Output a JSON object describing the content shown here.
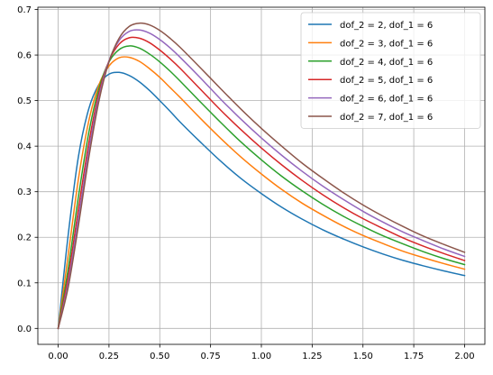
{
  "chart_data": {
    "type": "line",
    "title": "",
    "xlabel": "",
    "ylabel": "",
    "xlim": [
      -0.1,
      2.1
    ],
    "ylim": [
      -0.035,
      0.705
    ],
    "grid": true,
    "legend_placement": "top-right",
    "x_ticks": [
      0.0,
      0.25,
      0.5,
      0.75,
      1.0,
      1.25,
      1.5,
      1.75,
      2.0
    ],
    "x_tick_labels": [
      "0.00",
      "0.25",
      "0.50",
      "0.75",
      "1.00",
      "1.25",
      "1.50",
      "1.75",
      "2.00"
    ],
    "y_ticks": [
      0.0,
      0.1,
      0.2,
      0.3,
      0.4,
      0.5,
      0.6,
      0.7
    ],
    "y_tick_labels": [
      "0.0",
      "0.1",
      "0.2",
      "0.3",
      "0.4",
      "0.5",
      "0.6",
      "0.7"
    ],
    "x": [
      0.0,
      0.05,
      0.1,
      0.15,
      0.2,
      0.25,
      0.3,
      0.35,
      0.4,
      0.45,
      0.5,
      0.55,
      0.6,
      0.7,
      0.8,
      0.9,
      1.0,
      1.1,
      1.2,
      1.3,
      1.4,
      1.5,
      1.6,
      1.7,
      1.8,
      1.9,
      2.0
    ],
    "series": [
      {
        "name": "dof_2 = 2, dof_1 = 6",
        "color": "#1f77b4",
        "values": [
          0.0,
          0.208,
          0.378,
          0.481,
          0.535,
          0.558,
          0.562,
          0.555,
          0.541,
          0.522,
          0.5,
          0.477,
          0.453,
          0.409,
          0.367,
          0.329,
          0.296,
          0.266,
          0.24,
          0.217,
          0.197,
          0.179,
          0.163,
          0.149,
          0.137,
          0.126,
          0.116
        ]
      },
      {
        "name": "dof_2 = 3, dof_1 = 6",
        "color": "#ff7f0e",
        "values": [
          0.0,
          0.163,
          0.329,
          0.454,
          0.534,
          0.576,
          0.594,
          0.595,
          0.586,
          0.57,
          0.551,
          0.529,
          0.507,
          0.461,
          0.417,
          0.376,
          0.339,
          0.305,
          0.275,
          0.249,
          0.225,
          0.204,
          0.186,
          0.169,
          0.155,
          0.142,
          0.13
        ]
      },
      {
        "name": "dof_2 = 4, dof_1 = 6",
        "color": "#2ca02c",
        "values": [
          0.0,
          0.133,
          0.29,
          0.428,
          0.526,
          0.585,
          0.612,
          0.62,
          0.615,
          0.602,
          0.585,
          0.565,
          0.543,
          0.497,
          0.452,
          0.409,
          0.37,
          0.334,
          0.302,
          0.273,
          0.247,
          0.224,
          0.203,
          0.185,
          0.168,
          0.153,
          0.14
        ]
      },
      {
        "name": "dof_2 = 5, dof_1 = 6",
        "color": "#d62728",
        "values": [
          0.0,
          0.115,
          0.263,
          0.405,
          0.516,
          0.587,
          0.624,
          0.638,
          0.637,
          0.627,
          0.611,
          0.592,
          0.571,
          0.525,
          0.479,
          0.436,
          0.396,
          0.359,
          0.325,
          0.294,
          0.266,
          0.241,
          0.219,
          0.198,
          0.18,
          0.164,
          0.149
        ]
      },
      {
        "name": "dof_2 = 6, dof_1 = 6",
        "color": "#9467bd",
        "values": [
          0.0,
          0.102,
          0.243,
          0.388,
          0.507,
          0.587,
          0.632,
          0.652,
          0.655,
          0.648,
          0.634,
          0.616,
          0.595,
          0.55,
          0.503,
          0.459,
          0.418,
          0.38,
          0.345,
          0.313,
          0.284,
          0.257,
          0.233,
          0.211,
          0.192,
          0.174,
          0.158
        ]
      },
      {
        "name": "dof_2 = 7, dof_1 = 6",
        "color": "#8c564b",
        "values": [
          0.0,
          0.092,
          0.227,
          0.373,
          0.498,
          0.585,
          0.637,
          0.663,
          0.67,
          0.666,
          0.654,
          0.637,
          0.617,
          0.572,
          0.526,
          0.481,
          0.439,
          0.4,
          0.363,
          0.33,
          0.299,
          0.271,
          0.246,
          0.223,
          0.202,
          0.184,
          0.167
        ]
      }
    ]
  }
}
